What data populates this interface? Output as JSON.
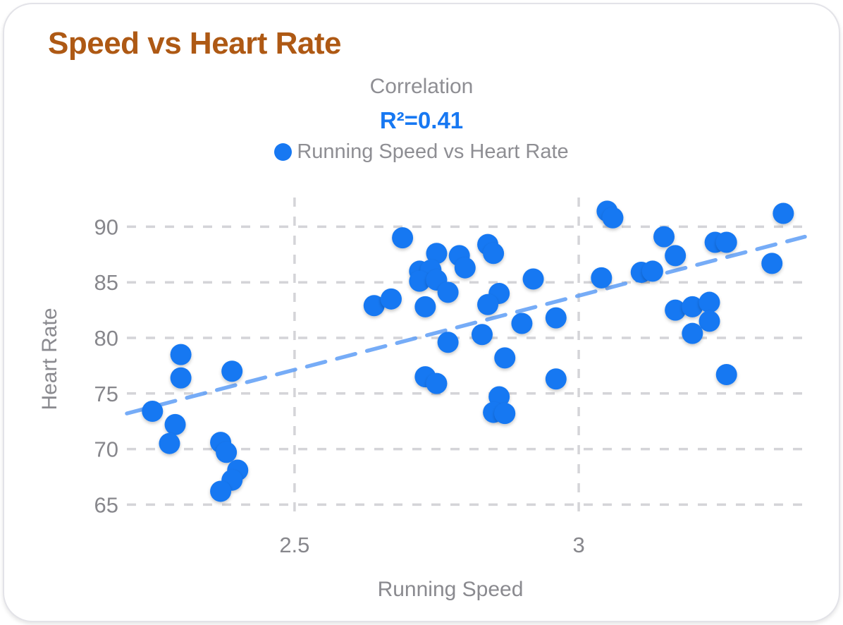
{
  "card": {
    "title": "Speed vs Heart Rate",
    "subtitle": "Correlation",
    "r_squared_label": "R²=0.41",
    "legend": {
      "label": "Running Speed vs Heart Rate"
    }
  },
  "colors": {
    "title": "#ae5914",
    "subtitle": "#8e8e93",
    "r_squared": "#1778f2",
    "point": "#1778f2",
    "trend_line": "#5f9ef6",
    "gridline": "#d4d4d8",
    "tick_label": "#87878c",
    "axis_title": "#8a8a8f",
    "card_border": "#e3e3e8"
  },
  "chart_data": {
    "type": "scatter",
    "title": "Speed vs Heart Rate",
    "subtitle": "Correlation",
    "annotation": "R²=0.41",
    "r_squared": 0.41,
    "series_name": "Running Speed vs Heart Rate",
    "xlabel": "Running Speed",
    "ylabel": "Heart Rate",
    "xlim": [
      2.205,
      3.398
    ],
    "ylim": [
      63.5,
      92.5
    ],
    "x_ticks": [
      2.5,
      3
    ],
    "x_tick_labels": [
      "2.5",
      "3"
    ],
    "y_ticks": [
      65,
      70,
      75,
      80,
      85,
      90
    ],
    "y_tick_labels": [
      "65",
      "70",
      "75",
      "80",
      "85",
      "90"
    ],
    "grid": true,
    "legend_position": "top-center",
    "points": [
      [
        2.3,
        78.5
      ],
      [
        2.3,
        76.4
      ],
      [
        2.39,
        77.0
      ],
      [
        2.25,
        73.4
      ],
      [
        2.29,
        72.2
      ],
      [
        2.28,
        70.5
      ],
      [
        2.37,
        70.6
      ],
      [
        2.38,
        69.7
      ],
      [
        2.4,
        68.1
      ],
      [
        2.39,
        67.2
      ],
      [
        2.37,
        66.2
      ],
      [
        2.69,
        89.0
      ],
      [
        2.75,
        87.6
      ],
      [
        2.79,
        87.4
      ],
      [
        2.84,
        88.4
      ],
      [
        2.85,
        87.6
      ],
      [
        2.72,
        86.0
      ],
      [
        2.74,
        86.1
      ],
      [
        2.72,
        85.1
      ],
      [
        2.75,
        85.2
      ],
      [
        2.8,
        86.3
      ],
      [
        2.77,
        84.1
      ],
      [
        2.92,
        85.3
      ],
      [
        2.64,
        82.9
      ],
      [
        2.67,
        83.5
      ],
      [
        2.73,
        82.8
      ],
      [
        2.86,
        84.0
      ],
      [
        2.84,
        83.0
      ],
      [
        2.9,
        81.3
      ],
      [
        2.96,
        81.8
      ],
      [
        2.77,
        79.6
      ],
      [
        2.83,
        80.3
      ],
      [
        2.87,
        78.2
      ],
      [
        2.73,
        76.5
      ],
      [
        2.75,
        75.9
      ],
      [
        2.96,
        76.3
      ],
      [
        2.86,
        74.7
      ],
      [
        2.85,
        73.3
      ],
      [
        2.87,
        73.2
      ],
      [
        3.05,
        91.4
      ],
      [
        3.06,
        90.8
      ],
      [
        3.36,
        91.2
      ],
      [
        3.15,
        89.1
      ],
      [
        3.24,
        88.6
      ],
      [
        3.26,
        88.6
      ],
      [
        3.17,
        87.4
      ],
      [
        3.34,
        86.7
      ],
      [
        3.04,
        85.4
      ],
      [
        3.11,
        85.9
      ],
      [
        3.13,
        86.0
      ],
      [
        3.17,
        82.5
      ],
      [
        3.2,
        82.8
      ],
      [
        3.23,
        83.2
      ],
      [
        3.23,
        81.5
      ],
      [
        3.2,
        80.4
      ],
      [
        3.26,
        76.7
      ]
    ],
    "trend_line": {
      "style": "dashed",
      "x1": 2.205,
      "y1": 73.2,
      "x2": 3.398,
      "y2": 89.1
    }
  }
}
